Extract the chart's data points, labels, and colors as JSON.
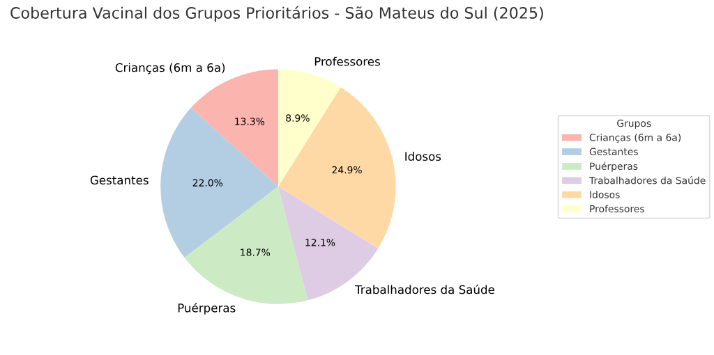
{
  "chart_data": {
    "type": "pie",
    "title": "Cobertura Vacinal dos Grupos Prioritários - São Mateus do Sul (2025)",
    "categories": [
      "Crianças (6m a 6a)",
      "Gestantes",
      "Puérperas",
      "Trabalhadores da Saúde",
      "Idosos",
      "Professores"
    ],
    "values": [
      13.3,
      22.0,
      18.7,
      12.1,
      24.9,
      8.9
    ],
    "value_labels": [
      "13.3%",
      "22.0%",
      "18.7%",
      "12.1%",
      "24.9%",
      "8.9%"
    ],
    "colors": [
      "#fbb4ae",
      "#b3cde3",
      "#ccebc5",
      "#decbe4",
      "#fed9a6",
      "#ffffcc"
    ],
    "legend_title": "Grupos",
    "legend": "right"
  }
}
